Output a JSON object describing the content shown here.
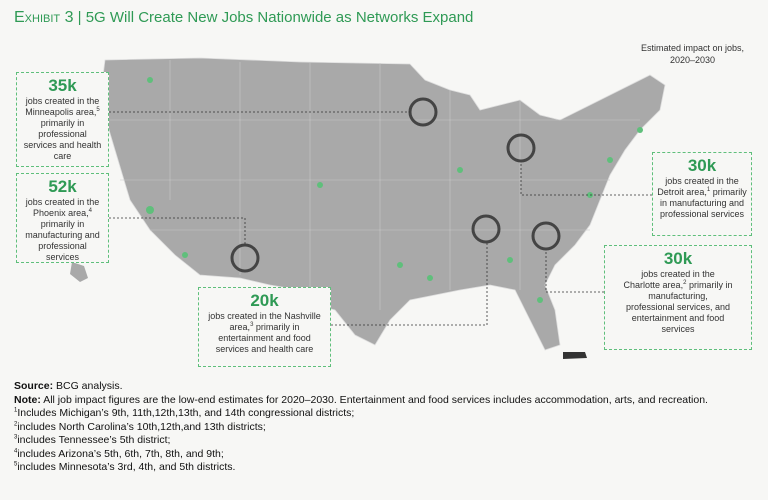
{
  "header": {
    "exhibit": "Exhibit 3",
    "separator": "|",
    "title": "5G Will Create New Jobs Nationwide as Networks Expand"
  },
  "legend": {
    "line1": "Estimated impact on jobs,",
    "line2": "2020–2030"
  },
  "callouts": [
    {
      "value": "35k",
      "text": "jobs created in the Minneapolis area,",
      "note": "5",
      "detail": "primarily in professional services and health care"
    },
    {
      "value": "52k",
      "text": "jobs created in the Phoenix area,",
      "note": "4",
      "detail": "primarily in manufacturing and professional services"
    },
    {
      "value": "20k",
      "text": "jobs created in the Nashville area,",
      "note": "3",
      "detail": "primarily in entertainment and food services and health care"
    },
    {
      "value": "30k",
      "text": "jobs created in the Detroit area,",
      "note": "1",
      "detail": "primarily in manufacturing and professional services"
    },
    {
      "value": "30k",
      "text": "jobs created in the Charlotte area,",
      "note": "2",
      "detail": "primarily in manufacturing, professional services, and entertainment and food services"
    }
  ],
  "footer": {
    "source_label": "Source:",
    "source": "BCG analysis.",
    "note_label": "Note:",
    "note": "All job impact figures are the low-end estimates for 2020–2030. Entertainment and food services includes accommodation, arts, and recreation.",
    "footnotes": [
      {
        "mark": "1",
        "text": "Includes Michigan’s 9th, 11th,12th,13th, and 14th congressional districts;"
      },
      {
        "mark": "2",
        "text": "includes North Carolina’s 10th,12th,and 13th districts;"
      },
      {
        "mark": "3",
        "text": "includes Tennessee’s 5th district;"
      },
      {
        "mark": "4",
        "text": "includes Arizona’s 5th, 6th, 7th, 8th, and 9th;"
      },
      {
        "mark": "5",
        "text": "includes Minnesota’s 3rd, 4th, and 5th districts."
      }
    ]
  }
}
